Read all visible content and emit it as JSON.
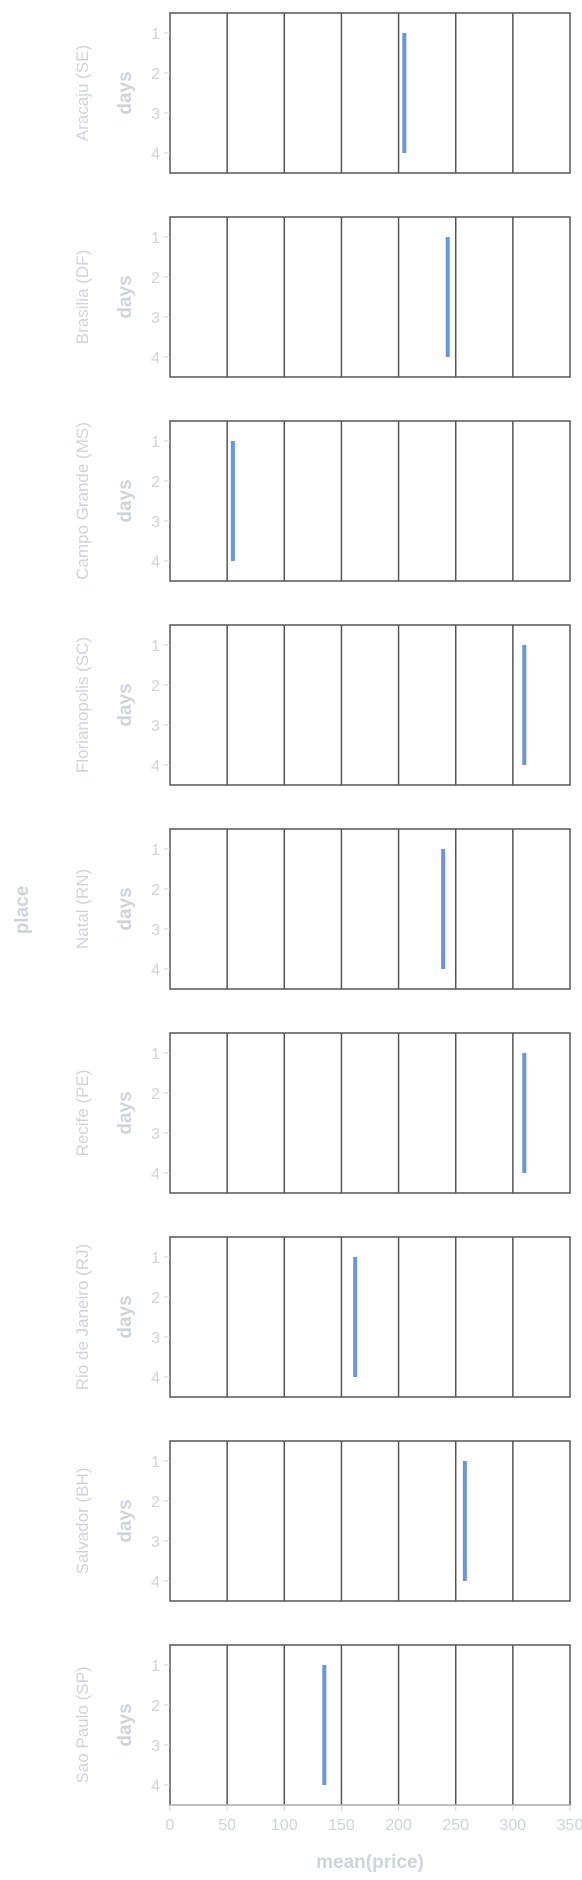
{
  "chart_data": {
    "type": "bar",
    "orientation": "horizontal",
    "facet_title": "place",
    "xlabel": "mean(price)",
    "ylabel": "days",
    "xlim": [
      0,
      350
    ],
    "x_ticks": [
      0,
      50,
      100,
      150,
      200,
      250,
      300,
      350
    ],
    "y_categories": [
      1,
      2,
      3,
      4
    ],
    "grid": "vertical",
    "bar_color": "#6495ed",
    "facets": [
      {
        "place": "Aracaju (SE)",
        "days": [
          1,
          2,
          3,
          4
        ],
        "value": 205
      },
      {
        "place": "Brasilia (DF)",
        "days": [
          1,
          2,
          3,
          4
        ],
        "value": 243
      },
      {
        "place": "Campo Grande (MS)",
        "days": [
          1,
          2,
          3,
          4
        ],
        "value": 55
      },
      {
        "place": "Florianopolis (SC)",
        "days": [
          1,
          2,
          3,
          4
        ],
        "value": 310
      },
      {
        "place": "Natal (RN)",
        "days": [
          1,
          2,
          3,
          4
        ],
        "value": 239
      },
      {
        "place": "Recife (PE)",
        "days": [
          1,
          2,
          3,
          4
        ],
        "value": 310
      },
      {
        "place": "Rio de Janeiro (RJ)",
        "days": [
          1,
          2,
          3,
          4
        ],
        "value": 162
      },
      {
        "place": "Salvador (BH)",
        "days": [
          1,
          2,
          3,
          4
        ],
        "value": 258
      },
      {
        "place": "Sao Paulo (SP)",
        "days": [
          1,
          2,
          3,
          4
        ],
        "value": 135
      }
    ]
  }
}
